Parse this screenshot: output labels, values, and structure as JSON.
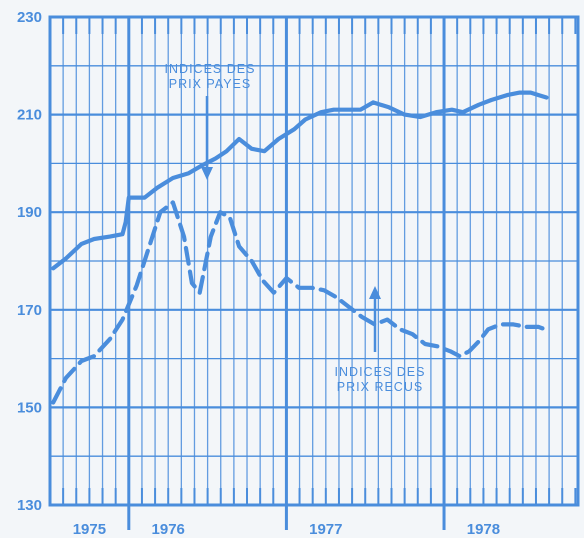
{
  "chart_data": {
    "type": "line",
    "title": "",
    "xlabel": "",
    "ylabel": "",
    "ylim": [
      130,
      230
    ],
    "xlim": [
      1975.0,
      1978.35
    ],
    "y_ticks": [
      130,
      150,
      170,
      190,
      210,
      230
    ],
    "x_tick_labels": [
      "1975",
      "1976",
      "1977",
      "1978"
    ],
    "x_tick_positions": [
      1975.25,
      1975.75,
      1976.75,
      1977.75,
      1978.2
    ],
    "grid": true,
    "color": "#4a8ddc",
    "annotations": [
      {
        "lines": [
          "INDICES DES",
          "PRIX PAYES"
        ],
        "target_series": 0
      },
      {
        "lines": [
          "INDICES DES",
          "PRIX RECUS"
        ],
        "target_series": 1
      }
    ],
    "series": [
      {
        "name": "INDICES DES PRIX PAYES",
        "style": "solid",
        "x": [
          1975.02,
          1975.1,
          1975.2,
          1975.28,
          1975.38,
          1975.46,
          1975.48,
          1975.5,
          1975.55,
          1975.6,
          1975.68,
          1975.78,
          1975.88,
          1975.96,
          1976.05,
          1976.12,
          1976.2,
          1976.28,
          1976.36,
          1976.45,
          1976.55,
          1976.62,
          1976.72,
          1976.8,
          1976.88,
          1976.97,
          1977.05,
          1977.15,
          1977.25,
          1977.35,
          1977.45,
          1977.55,
          1977.62,
          1977.72,
          1977.8,
          1977.9,
          1977.98,
          1978.05,
          1978.1,
          1978.15
        ],
        "y": [
          178.5,
          180.5,
          183.5,
          184.5,
          185,
          185.5,
          188,
          193,
          193,
          193,
          195,
          197,
          198,
          199.5,
          201,
          202.5,
          205,
          203,
          202.5,
          205,
          207,
          209,
          210.5,
          211,
          211,
          211,
          212.5,
          211.5,
          210,
          209.5,
          210.5,
          211,
          210.5,
          212,
          213,
          214,
          214.5,
          214.5,
          214,
          213.5
        ]
      },
      {
        "name": "INDICES DES PRIX RECUS",
        "style": "dashed",
        "x": [
          1975.02,
          1975.1,
          1975.2,
          1975.28,
          1975.38,
          1975.46,
          1975.55,
          1975.62,
          1975.7,
          1975.78,
          1975.85,
          1975.9,
          1975.95,
          1976.02,
          1976.08,
          1976.14,
          1976.2,
          1976.28,
          1976.35,
          1976.42,
          1976.5,
          1976.58,
          1976.66,
          1976.74,
          1976.82,
          1976.9,
          1976.98,
          1977.06,
          1977.14,
          1977.22,
          1977.3,
          1977.38,
          1977.46,
          1977.54,
          1977.6,
          1977.66,
          1977.72,
          1977.78,
          1977.86,
          1977.94,
          1978.02,
          1978.1,
          1978.14
        ],
        "y": [
          151,
          156,
          159.5,
          160.5,
          164,
          168,
          175,
          182,
          190,
          192,
          185,
          175.5,
          173.5,
          185,
          190,
          189,
          183,
          180,
          176,
          173.5,
          176.5,
          174.5,
          174.5,
          174,
          172.5,
          170.5,
          168.5,
          167,
          168,
          166,
          165,
          163,
          162.5,
          161.5,
          160.5,
          161.5,
          163.5,
          166,
          167,
          167,
          166.5,
          166.5,
          166
        ]
      }
    ]
  }
}
